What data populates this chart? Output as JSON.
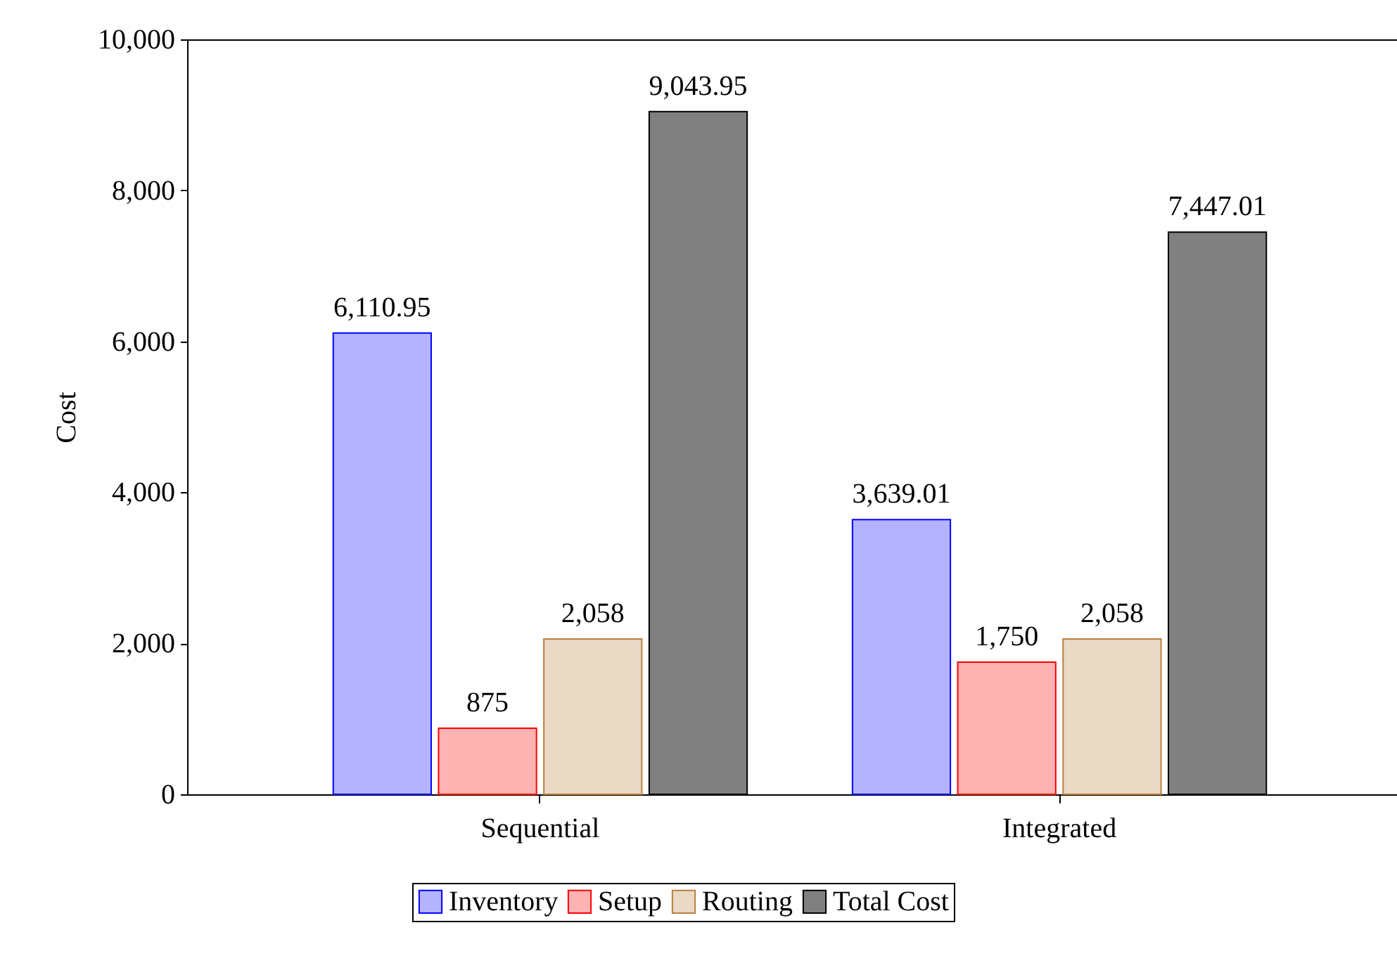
{
  "chart_data": {
    "type": "bar",
    "ylabel": "Cost",
    "categories": [
      "Sequential",
      "Integrated"
    ],
    "series": [
      {
        "name": "Inventory",
        "color": "#b3b3ff",
        "values": [
          6110.95,
          3639.01
        ],
        "value_labels": [
          "6,110.95",
          "3,639.01"
        ]
      },
      {
        "name": "Setup",
        "color": "#ffb3b3",
        "values": [
          875,
          1750
        ],
        "value_labels": [
          "875",
          "1,750"
        ]
      },
      {
        "name": "Routing",
        "color": "#ead9c5",
        "values": [
          2058,
          2058
        ],
        "value_labels": [
          "2,058",
          "2,058"
        ]
      },
      {
        "name": "Total Cost",
        "color": "#808080",
        "values": [
          9043.95,
          7447.01
        ],
        "value_labels": [
          "9,043.95",
          "7,447.01"
        ]
      }
    ],
    "ylim": [
      0,
      10000
    ],
    "yticks": [
      0,
      {
        "value": 2000,
        "label": "2,000"
      },
      {
        "value": 4000,
        "label": "4,000"
      },
      {
        "value": 6000,
        "label": "6,000"
      },
      {
        "value": 8000,
        "label": "8,000"
      },
      {
        "value": 10000,
        "label": "10,000"
      }
    ],
    "grid": false,
    "legend": "bottom"
  }
}
